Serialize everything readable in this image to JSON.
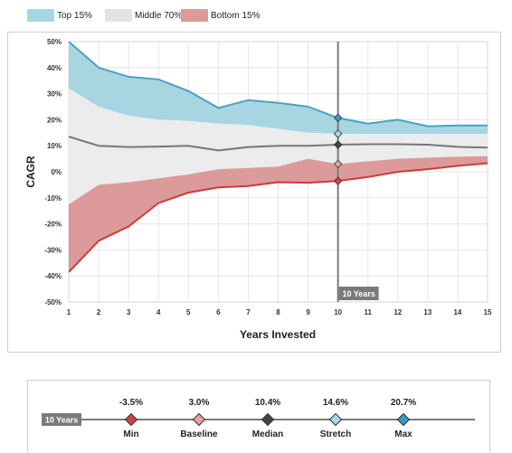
{
  "legend": [
    {
      "label": "Top 15%",
      "color": "#a8d5e2"
    },
    {
      "label": "Middle 70%",
      "color": "#e3e3e3"
    },
    {
      "label": "Bottom 15%",
      "color": "#dc9a9a"
    }
  ],
  "chart_data": {
    "type": "area",
    "xlabel": "Years Invested",
    "ylabel": "CAGR",
    "x": [
      1,
      2,
      3,
      4,
      5,
      6,
      7,
      8,
      9,
      10,
      11,
      12,
      13,
      14,
      15
    ],
    "xlim": [
      1,
      15
    ],
    "ylim": [
      -50,
      50
    ],
    "yticks": [
      -50,
      -40,
      -30,
      -20,
      -10,
      0,
      10,
      20,
      30,
      40,
      50
    ],
    "ytick_labels": [
      "-50%",
      "-40%",
      "-30%",
      "-20%",
      "-10%",
      "0%",
      "10%",
      "20%",
      "30%",
      "40%",
      "50%"
    ],
    "grid": true,
    "series": [
      {
        "name": "Max",
        "values": [
          50,
          40,
          36.5,
          35.5,
          31,
          24.5,
          27.5,
          26.5,
          25,
          20.7,
          18.5,
          20,
          17.5,
          17.8,
          17.8
        ],
        "color": "#4aa3c3"
      },
      {
        "name": "Stretch",
        "values": [
          32,
          25,
          21.5,
          20,
          19.5,
          18.5,
          18,
          16.5,
          15,
          14.6,
          14.5,
          14.5,
          14.5,
          14.5,
          14.5
        ]
      },
      {
        "name": "Median",
        "values": [
          13.5,
          10,
          9.5,
          9.7,
          10,
          8.2,
          9.5,
          10,
          10,
          10.4,
          10.6,
          10.6,
          10.4,
          9.6,
          9.3
        ],
        "color": "#777777"
      },
      {
        "name": "Baseline",
        "values": [
          -12.5,
          -5,
          -4,
          -2.5,
          -1,
          1,
          1.5,
          2,
          5,
          3.0,
          4,
          5,
          5.5,
          5.8,
          6
        ]
      },
      {
        "name": "Min",
        "values": [
          -38.5,
          -26.5,
          -21,
          -12,
          -8,
          -6,
          -5.5,
          -4,
          -4.2,
          -3.5,
          -2,
          0,
          1,
          2.3,
          3.3
        ],
        "color": "#cc3b3b"
      }
    ],
    "marker_year": 10,
    "marker_label": "10 Years"
  },
  "summary": {
    "year_label": "10 Years",
    "items": [
      {
        "label": "Min",
        "value": "-3.5%",
        "color": "#cc4444"
      },
      {
        "label": "Baseline",
        "value": "3.0%",
        "color": "#e8a3a3"
      },
      {
        "label": "Median",
        "value": "10.4%",
        "color": "#444444"
      },
      {
        "label": "Stretch",
        "value": "14.6%",
        "color": "#a8d8ee"
      },
      {
        "label": "Max",
        "value": "20.7%",
        "color": "#3a9bc8"
      }
    ]
  }
}
